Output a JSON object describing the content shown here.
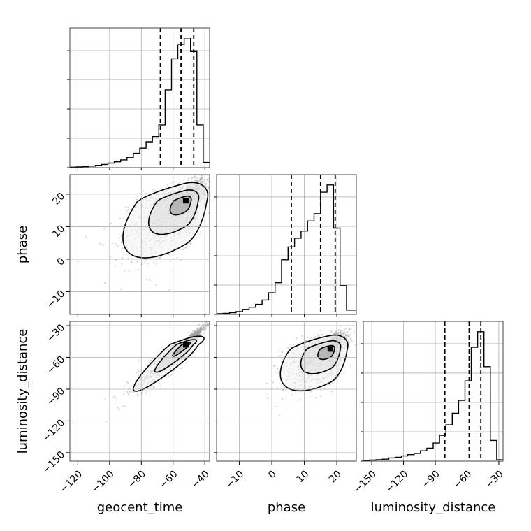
{
  "chart_data": {
    "type": "corner",
    "parameters": [
      "geocent_time",
      "phase",
      "luminosity_distance"
    ],
    "ranges": {
      "geocent_time": [
        -125,
        -37
      ],
      "phase": [
        -17,
        26
      ],
      "luminosity_distance": [
        -158,
        -26
      ]
    },
    "ticks": {
      "geocent_time": {
        "values": [
          -120,
          -100,
          -80,
          -60,
          -40
        ],
        "labels": [
          "−120",
          "−100",
          "−80",
          "−60",
          "−40"
        ]
      },
      "phase": {
        "values": [
          -10,
          0,
          10,
          20
        ],
        "labels": [
          "−10",
          "0",
          "10",
          "20"
        ]
      },
      "luminosity_distance": {
        "values": [
          -150,
          -120,
          -90,
          -60,
          -30
        ],
        "labels": [
          "−150",
          "−120",
          "−90",
          "−60",
          "−30"
        ]
      }
    },
    "quantiles": {
      "geocent_time": [
        -68,
        -55,
        -47
      ],
      "phase": [
        6,
        15,
        19.5
      ],
      "luminosity_distance": [
        -81,
        -58,
        -47
      ]
    },
    "histograms": {
      "geocent_time": {
        "bin_edges": [
          -125,
          -121,
          -117,
          -113,
          -109,
          -105,
          -101,
          -97,
          -93,
          -89,
          -85,
          -81,
          -77,
          -73,
          -69,
          -65,
          -61,
          -57,
          -53,
          -49,
          -45,
          -41,
          -37
        ],
        "counts": [
          0.004,
          0.006,
          0.008,
          0.012,
          0.018,
          0.025,
          0.035,
          0.045,
          0.06,
          0.08,
          0.11,
          0.15,
          0.2,
          0.24,
          0.33,
          0.6,
          0.84,
          0.95,
          1.0,
          0.9,
          0.33,
          0.04
        ]
      },
      "phase": {
        "bin_edges": [
          -17,
          -15,
          -13,
          -11,
          -9,
          -7,
          -5,
          -3,
          -1,
          1,
          3,
          5,
          7,
          9,
          11,
          13,
          15,
          17,
          19,
          21,
          23,
          26
        ],
        "counts": [
          0.005,
          0.008,
          0.012,
          0.02,
          0.035,
          0.05,
          0.07,
          0.1,
          0.15,
          0.22,
          0.38,
          0.47,
          0.53,
          0.58,
          0.65,
          0.7,
          0.85,
          0.9,
          0.6,
          0.2,
          0.03
        ]
      },
      "luminosity_distance": {
        "bin_edges": [
          -158,
          -152,
          -146,
          -140,
          -134,
          -128,
          -122,
          -116,
          -110,
          -104,
          -98,
          -92,
          -86,
          -80,
          -74,
          -68,
          -62,
          -56,
          -50,
          -44,
          -38,
          -32,
          -26
        ],
        "counts": [
          0.005,
          0.008,
          0.011,
          0.015,
          0.025,
          0.03,
          0.04,
          0.05,
          0.06,
          0.08,
          0.1,
          0.14,
          0.2,
          0.28,
          0.37,
          0.47,
          0.62,
          0.88,
          1.0,
          0.73,
          0.16,
          0.01
        ]
      }
    },
    "correlations": {
      "phase|geocent_time": {
        "center": [
          -52,
          18
        ],
        "spread": [
          18,
          8
        ],
        "rho": 0.65
      },
      "luminosity_distance|geocent_time": {
        "center": [
          -52,
          -48
        ],
        "spread": [
          15,
          20
        ],
        "rho": 0.95
      },
      "luminosity_distance|phase": {
        "center": [
          18,
          -52
        ],
        "spread": [
          7,
          18
        ],
        "rho": 0.6
      }
    },
    "grid": true,
    "colors": {
      "hist": "#000000",
      "points": "#a0a0a0",
      "contour": "#000000",
      "grid": "#b0b0b0"
    }
  }
}
